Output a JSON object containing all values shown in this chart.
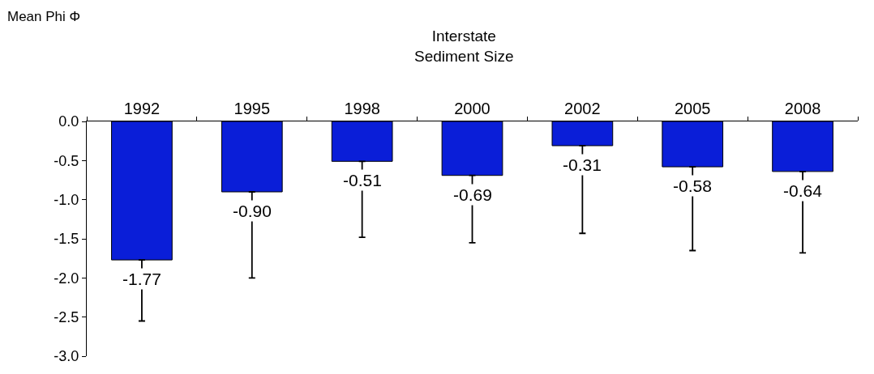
{
  "chart_data": {
    "type": "bar",
    "title": "Interstate\nSediment Size",
    "annotations": [
      "Mean Phi Φ"
    ],
    "categories": [
      "1992",
      "1995",
      "1998",
      "2000",
      "2002",
      "2005",
      "2008"
    ],
    "values": [
      -1.77,
      -0.9,
      -0.51,
      -0.69,
      -0.31,
      -0.58,
      -0.64
    ],
    "value_labels": [
      "-1.77",
      "-0.90",
      "-0.51",
      "-0.69",
      "-0.31",
      "-0.58",
      "-0.64"
    ],
    "errors": [
      [
        -2.55,
        -1.77
      ],
      [
        -2.0,
        -0.9
      ],
      [
        -1.48,
        -0.51
      ],
      [
        -1.55,
        -0.69
      ],
      [
        -1.43,
        -0.31
      ],
      [
        -1.65,
        -0.58
      ],
      [
        -1.68,
        -0.64
      ]
    ],
    "color": "#0a1ed8",
    "ylim": [
      -3.0,
      0.0
    ],
    "yticks": [
      {
        "value": 0,
        "label": "0.0"
      },
      {
        "value": -0.5,
        "label": "-0.5"
      },
      {
        "value": -1.0,
        "label": "-1.0"
      },
      {
        "value": -1.5,
        "label": "-1.5"
      },
      {
        "value": -2.0,
        "label": "-2.0"
      },
      {
        "value": -2.5,
        "label": "-2.5"
      },
      {
        "value": -3.0,
        "label": "-3.0"
      }
    ]
  }
}
